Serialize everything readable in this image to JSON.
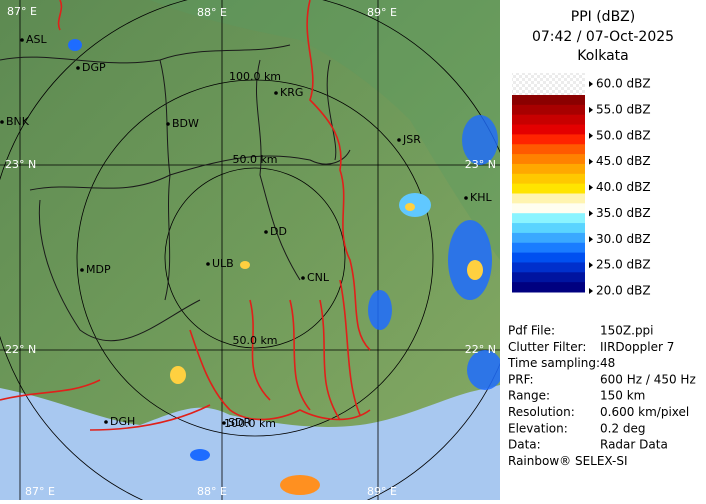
{
  "header": {
    "title": "PPI (dBZ)",
    "time": "07:42 / 07-Oct-2025",
    "site": "Kolkata"
  },
  "map": {
    "grid_labels": {
      "lon_top": [
        "87° E",
        "88° E",
        "89° E"
      ],
      "lon_bottom": [
        "87° E",
        "88° E",
        "89° E"
      ],
      "lat_left": [
        "23° N",
        "22° N"
      ],
      "lat_right": [
        "23° N",
        "22° N"
      ]
    },
    "ranges": [
      "100.0 km",
      "50.0 km",
      "50.0 km",
      "100.0 km"
    ],
    "places": [
      "ASL",
      "DGP",
      "BNK",
      "BDW",
      "KRG",
      "JSR",
      "KHL",
      "MDP",
      "DD",
      "ULB",
      "CNL",
      "DGH",
      "SDR"
    ]
  },
  "scale": {
    "labels": [
      "60.0 dBZ",
      "55.0 dBZ",
      "50.0 dBZ",
      "45.0 dBZ",
      "40.0 dBZ",
      "35.0 dBZ",
      "30.0 dBZ",
      "25.0 dBZ",
      "20.0 dBZ"
    ],
    "colors": [
      "#8b0000",
      "#a80000",
      "#c80000",
      "#e40000",
      "#ff2400",
      "#ff5a00",
      "#ff8200",
      "#ffa800",
      "#ffc800",
      "#ffe400",
      "#fff4b0",
      "#fffef0",
      "#8af4ff",
      "#5ad4ff",
      "#3aa8ff",
      "#1a7cff",
      "#0050f0",
      "#0030cc",
      "#0014a0",
      "#000080"
    ]
  },
  "info": {
    "rows": [
      [
        "Pdf File:",
        "150Z.ppi"
      ],
      [
        "Clutter Filter:",
        "IIRDoppler 7"
      ],
      [
        "Time sampling:48"
      ],
      [
        "PRF:",
        "600 Hz / 450 Hz"
      ],
      [
        "Range:",
        "150 km"
      ],
      [
        "Resolution:",
        "0.600 km/pixel"
      ],
      [
        "Elevation:",
        "0.2 deg"
      ],
      [
        "Data:",
        "Radar Data"
      ]
    ],
    "footer": "Rainbow® SELEX-SI"
  }
}
